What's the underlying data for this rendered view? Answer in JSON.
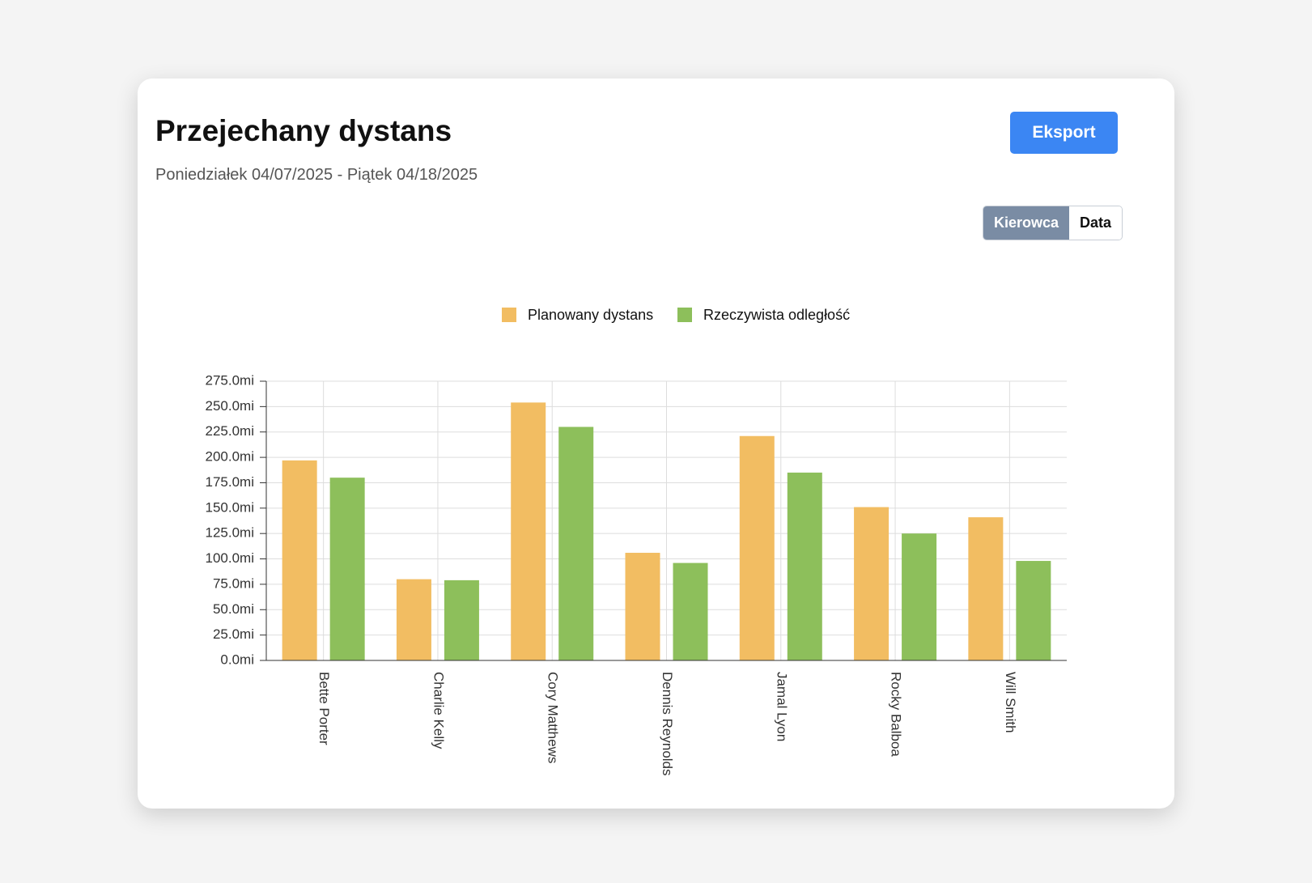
{
  "header": {
    "title": "Przejechany dystans",
    "subtitle": "Poniedziałek 04/07/2025 - Piątek 04/18/2025",
    "export": "Eksport"
  },
  "toggle": [
    "Kierowca",
    "Data"
  ],
  "chart_data": {
    "type": "bar",
    "categories": [
      "Bette Porter",
      "Charlie Kelly",
      "Cory Matthews",
      "Dennis Reynolds",
      "Jamal Lyon",
      "Rocky Balboa",
      "Will Smith"
    ],
    "series": [
      {
        "name": "Planowany dystans",
        "color": "#f2bd62",
        "values": [
          197,
          80,
          254,
          106,
          221,
          151,
          141
        ]
      },
      {
        "name": "Rzeczywista odległość",
        "color": "#8dbf5b",
        "values": [
          180,
          79,
          230,
          96,
          185,
          125,
          98
        ]
      }
    ],
    "ylim": [
      0,
      275
    ],
    "yticks": [
      {
        "value": 0,
        "label": "0.0mi"
      },
      {
        "value": 25,
        "label": "25.0mi"
      },
      {
        "value": 50,
        "label": "50.0mi"
      },
      {
        "value": 75,
        "label": "75.0mi"
      },
      {
        "value": 100,
        "label": "100.0mi"
      },
      {
        "value": 125,
        "label": "125.0mi"
      },
      {
        "value": 150,
        "label": "150.0mi"
      },
      {
        "value": 175,
        "label": "175.0mi"
      },
      {
        "value": 200,
        "label": "200.0mi"
      },
      {
        "value": 225,
        "label": "225.0mi"
      },
      {
        "value": 250,
        "label": "250.0mi"
      },
      {
        "value": 275,
        "label": "275.0mi"
      }
    ],
    "grid": true,
    "legend": "top"
  }
}
